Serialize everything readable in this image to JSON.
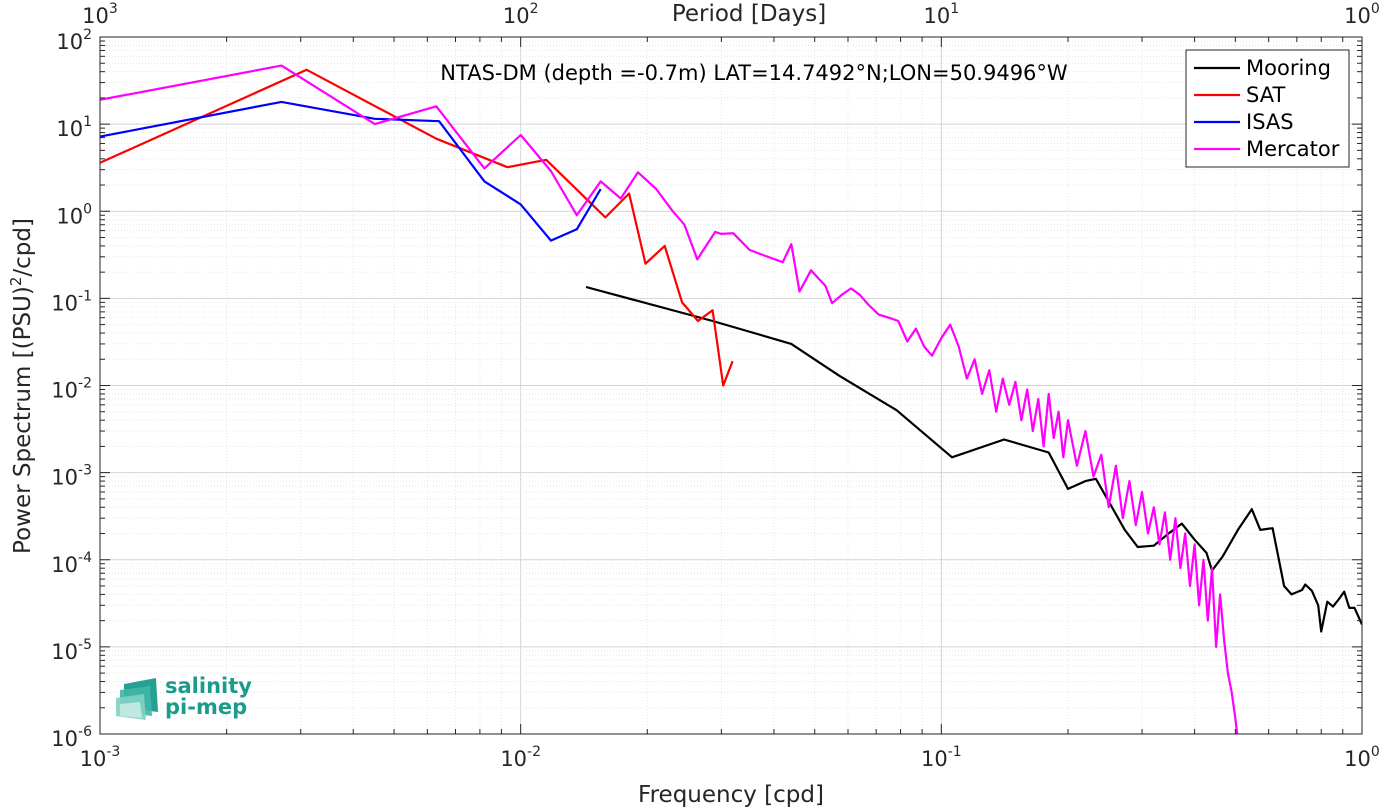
{
  "chart_data": {
    "type": "line",
    "title": "NTAS-DM (depth =-0.7m) LAT=14.7492°N;LON=50.9496°W",
    "xlabel": "Frequency [cpd]",
    "ylabel_main": "Power Spectrum [(PSU)",
    "ylabel_sup": "2",
    "ylabel_tail": "/cpd]",
    "top_xlabel": "Period [Days]",
    "xscale": "log",
    "yscale": "log",
    "xlim": [
      0.001,
      1
    ],
    "ylim": [
      1e-06,
      100
    ],
    "grid": true,
    "legend_placement": "top-right",
    "x_tick_labels": [
      {
        "base": "10",
        "exp": "-3"
      },
      {
        "base": "10",
        "exp": "-2"
      },
      {
        "base": "10",
        "exp": "-1"
      },
      {
        "base": "10",
        "exp": "0"
      }
    ],
    "y_tick_labels": [
      {
        "base": "10",
        "exp": "-6"
      },
      {
        "base": "10",
        "exp": "-5"
      },
      {
        "base": "10",
        "exp": "-4"
      },
      {
        "base": "10",
        "exp": "-3"
      },
      {
        "base": "10",
        "exp": "-2"
      },
      {
        "base": "10",
        "exp": "-1"
      },
      {
        "base": "10",
        "exp": "0"
      },
      {
        "base": "10",
        "exp": "1"
      },
      {
        "base": "10",
        "exp": "2"
      }
    ],
    "top_tick_labels": [
      {
        "base": "10",
        "exp": "3"
      },
      {
        "base": "10",
        "exp": "2"
      },
      {
        "base": "10",
        "exp": "1"
      },
      {
        "base": "10",
        "exp": "0"
      }
    ],
    "series": [
      {
        "name": "Mooring",
        "color": "#000000",
        "points": [
          [
            0.0143,
            0.135
          ],
          [
            0.0286,
            0.055
          ],
          [
            0.044,
            0.03
          ],
          [
            0.0571,
            0.013
          ],
          [
            0.0783,
            0.0052
          ],
          [
            0.106,
            0.0015
          ],
          [
            0.141,
            0.0024
          ],
          [
            0.18,
            0.0017
          ],
          [
            0.2,
            0.00065
          ],
          [
            0.22,
            0.0008
          ],
          [
            0.233,
            0.00085
          ],
          [
            0.273,
            0.00022
          ],
          [
            0.293,
            0.00014
          ],
          [
            0.32,
            0.000145
          ],
          [
            0.347,
            0.0002
          ],
          [
            0.373,
            0.00026
          ],
          [
            0.4,
            0.00017
          ],
          [
            0.427,
            0.00012
          ],
          [
            0.44,
            7.5e-05
          ],
          [
            0.467,
            0.00011
          ],
          [
            0.507,
            0.00022
          ],
          [
            0.547,
            0.00038
          ],
          [
            0.573,
            0.00022
          ],
          [
            0.613,
            0.00023
          ],
          [
            0.653,
            5e-05
          ],
          [
            0.68,
            4e-05
          ],
          [
            0.72,
            4.5e-05
          ],
          [
            0.733,
            5.2e-05
          ],
          [
            0.76,
            4.4e-05
          ],
          [
            0.787,
            3e-05
          ],
          [
            0.8,
            1.5e-05
          ],
          [
            0.827,
            3.3e-05
          ],
          [
            0.853,
            2.9e-05
          ],
          [
            0.88,
            3.5e-05
          ],
          [
            0.907,
            4.3e-05
          ],
          [
            0.933,
            2.8e-05
          ],
          [
            0.96,
            2.8e-05
          ],
          [
            1.0,
            1.8e-05
          ]
        ]
      },
      {
        "name": "SAT",
        "color": "#ff0000",
        "points": [
          [
            0.001,
            3.6
          ],
          [
            0.0031,
            42
          ],
          [
            0.0063,
            6.8
          ],
          [
            0.0093,
            3.2
          ],
          [
            0.0115,
            3.9
          ],
          [
            0.0159,
            0.85
          ],
          [
            0.0181,
            1.6
          ],
          [
            0.0198,
            0.25
          ],
          [
            0.022,
            0.4
          ],
          [
            0.0242,
            0.09
          ],
          [
            0.0264,
            0.055
          ],
          [
            0.0286,
            0.073
          ],
          [
            0.0303,
            0.01
          ],
          [
            0.0319,
            0.019
          ]
        ]
      },
      {
        "name": "ISAS",
        "color": "#0000ff",
        "points": [
          [
            0.001,
            7.2
          ],
          [
            0.0027,
            18
          ],
          [
            0.0045,
            11.5
          ],
          [
            0.0064,
            10.8
          ],
          [
            0.0082,
            2.2
          ],
          [
            0.01,
            1.2
          ],
          [
            0.0118,
            0.46
          ],
          [
            0.0136,
            0.62
          ],
          [
            0.0155,
            1.8
          ]
        ]
      },
      {
        "name": "Mercator",
        "color": "#ff00ff",
        "points": [
          [
            0.001,
            19
          ],
          [
            0.0027,
            47
          ],
          [
            0.0045,
            10
          ],
          [
            0.0063,
            16
          ],
          [
            0.0082,
            3.1
          ],
          [
            0.01,
            7.5
          ],
          [
            0.0118,
            2.9
          ],
          [
            0.0136,
            0.9
          ],
          [
            0.0155,
            2.2
          ],
          [
            0.0173,
            1.4
          ],
          [
            0.019,
            2.8
          ],
          [
            0.021,
            1.8
          ],
          [
            0.023,
            1.0
          ],
          [
            0.0245,
            0.7
          ],
          [
            0.0263,
            0.28
          ],
          [
            0.029,
            0.58
          ],
          [
            0.03,
            0.55
          ],
          [
            0.032,
            0.56
          ],
          [
            0.035,
            0.36
          ],
          [
            0.038,
            0.31
          ],
          [
            0.042,
            0.26
          ],
          [
            0.044,
            0.42
          ],
          [
            0.046,
            0.12
          ],
          [
            0.049,
            0.21
          ],
          [
            0.051,
            0.17
          ],
          [
            0.053,
            0.14
          ],
          [
            0.055,
            0.088
          ],
          [
            0.058,
            0.11
          ],
          [
            0.061,
            0.13
          ],
          [
            0.064,
            0.11
          ],
          [
            0.067,
            0.085
          ],
          [
            0.071,
            0.065
          ],
          [
            0.075,
            0.06
          ],
          [
            0.079,
            0.055
          ],
          [
            0.083,
            0.032
          ],
          [
            0.087,
            0.045
          ],
          [
            0.091,
            0.028
          ],
          [
            0.095,
            0.022
          ],
          [
            0.1,
            0.035
          ],
          [
            0.105,
            0.05
          ],
          [
            0.11,
            0.028
          ],
          [
            0.115,
            0.012
          ],
          [
            0.12,
            0.02
          ],
          [
            0.125,
            0.008
          ],
          [
            0.13,
            0.015
          ],
          [
            0.135,
            0.005
          ],
          [
            0.14,
            0.012
          ],
          [
            0.145,
            0.006
          ],
          [
            0.15,
            0.011
          ],
          [
            0.155,
            0.004
          ],
          [
            0.16,
            0.009
          ],
          [
            0.165,
            0.003
          ],
          [
            0.17,
            0.007
          ],
          [
            0.175,
            0.002
          ],
          [
            0.18,
            0.008
          ],
          [
            0.185,
            0.0025
          ],
          [
            0.19,
            0.005
          ],
          [
            0.195,
            0.0015
          ],
          [
            0.2,
            0.004
          ],
          [
            0.21,
            0.0012
          ],
          [
            0.22,
            0.003
          ],
          [
            0.23,
            0.0009
          ],
          [
            0.24,
            0.0016
          ],
          [
            0.25,
            0.0004
          ],
          [
            0.26,
            0.0012
          ],
          [
            0.27,
            0.0003
          ],
          [
            0.28,
            0.0008
          ],
          [
            0.29,
            0.00025
          ],
          [
            0.3,
            0.0006
          ],
          [
            0.31,
            0.0002
          ],
          [
            0.32,
            0.0004
          ],
          [
            0.33,
            0.00015
          ],
          [
            0.34,
            0.00035
          ],
          [
            0.35,
            0.0001
          ],
          [
            0.36,
            0.0003
          ],
          [
            0.37,
            8e-05
          ],
          [
            0.38,
            0.0002
          ],
          [
            0.39,
            5e-05
          ],
          [
            0.4,
            0.00015
          ],
          [
            0.41,
            3e-05
          ],
          [
            0.42,
            0.0001
          ],
          [
            0.43,
            2e-05
          ],
          [
            0.44,
            8e-05
          ],
          [
            0.45,
            1e-05
          ],
          [
            0.46,
            4e-05
          ],
          [
            0.47,
            1.2e-05
          ],
          [
            0.48,
            5e-06
          ],
          [
            0.49,
            3e-06
          ],
          [
            0.5,
            1.5e-06
          ],
          [
            0.505,
            1e-06
          ]
        ]
      }
    ]
  },
  "logo": {
    "line1": "salinity",
    "line2": "pi-mep"
  },
  "colors": {
    "logo": "#1a9b8c",
    "grid": "#dcdcdc",
    "axis": "#262626"
  }
}
